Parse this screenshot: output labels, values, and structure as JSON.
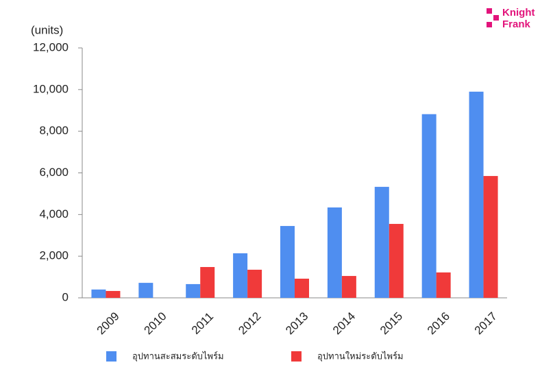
{
  "chart_data": {
    "type": "bar",
    "y_label": "(units)",
    "categories": [
      "2009",
      "2010",
      "2011",
      "2012",
      "2013",
      "2014",
      "2015",
      "2016",
      "2017"
    ],
    "series": [
      {
        "name": "อุปทานสะสมระดับไพร์ม",
        "color": "#4f8ef0",
        "values": [
          400,
          720,
          660,
          2140,
          3450,
          4340,
          5330,
          8820,
          9900
        ]
      },
      {
        "name": "อุปทานใหม่ระดับไพร์ม",
        "color": "#f03a3a",
        "values": [
          330,
          0,
          1480,
          1350,
          920,
          1050,
          3550,
          1220,
          5850
        ]
      }
    ],
    "ylim": [
      0,
      12000
    ],
    "yticks": [
      0,
      {
        "value": 2000,
        "label": "2,000"
      },
      {
        "value": 4000,
        "label": "4,000"
      },
      {
        "value": 6000,
        "label": "6,000"
      },
      {
        "value": 8000,
        "label": "8,000"
      },
      {
        "value": 10000,
        "label": "10,000"
      },
      {
        "value": 12000,
        "label": "12,000"
      }
    ]
  },
  "logo": {
    "line1": "Knight",
    "line2": "Frank"
  }
}
